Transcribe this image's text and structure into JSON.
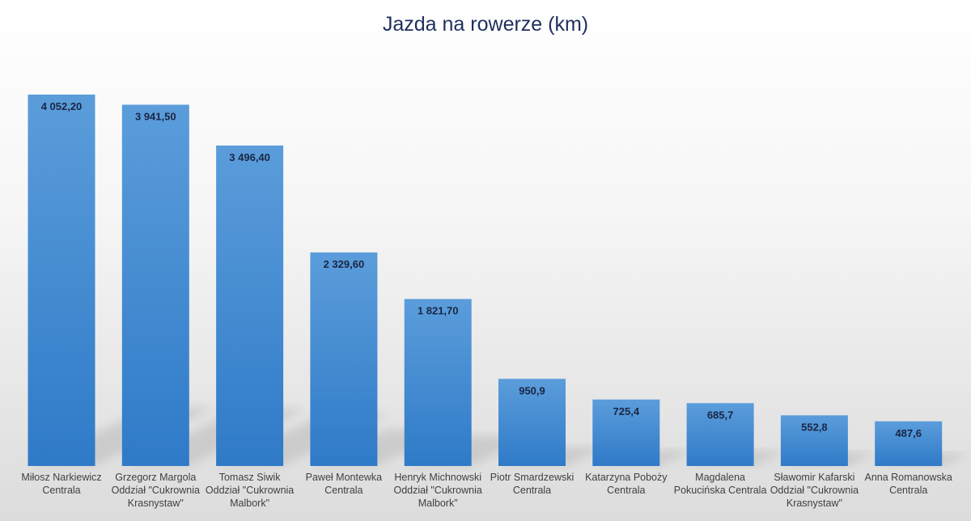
{
  "chart_data": {
    "type": "bar",
    "title": "Jazda na rowerze (km)",
    "xlabel": "",
    "ylabel": "",
    "ylim": [
      0,
      4300
    ],
    "grid": false,
    "legend": "none",
    "categories": [
      "Miłosz Narkiewicz\nCentrala",
      "Grzegorz Margola\nOddział \"Cukrownia\nKrasnystaw\"",
      "Tomasz Siwik\nOddział \"Cukrownia\nMalbork\"",
      "Paweł Montewka\nCentrala",
      "Henryk Michnowski\nOddział \"Cukrownia\nMalbork\"",
      "Piotr Smardzewski\nCentrala",
      "Katarzyna Poboży\nCentrala",
      "Magdalena\nPokucińska Centrala",
      "Sławomir Kafarski\nOddział \"Cukrownia\nKrasnystaw\"",
      "Anna Romanowska\nCentrala"
    ],
    "values": [
      4052.2,
      3941.5,
      3496.4,
      2329.6,
      1821.7,
      950.9,
      725.4,
      685.7,
      552.8,
      487.6
    ],
    "data_labels": [
      "4 052,20",
      "3 941,50",
      "3 496,40",
      "2 329,60",
      "1 821,70",
      "950,9",
      "725,4",
      "685,7",
      "552,8",
      "487,6"
    ],
    "colors": {
      "bar_top": "#5b9ddb",
      "bar_bottom": "#2f7ac8",
      "title": "#1f2f5e",
      "data_label": "#1a2644",
      "axis_label": "#404040"
    }
  }
}
